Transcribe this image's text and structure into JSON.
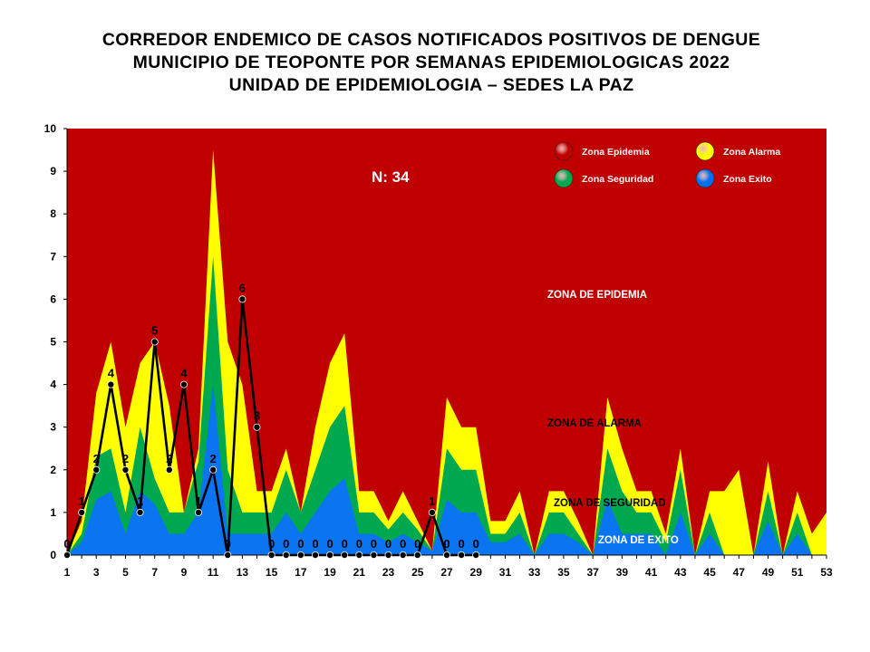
{
  "title": {
    "line1": "CORREDOR ENDEMICO DE CASOS NOTIFICADOS POSITIVOS DE DENGUE",
    "line2": "MUNICIPIO DE TEOPONTE  POR SEMANAS EPIDEMIOLOGICAS 2022",
    "line3": "UNIDAD DE EPIDEMIOLOGIA – SEDES LA PAZ"
  },
  "annotation_n": "N: 34",
  "zone_labels": {
    "epidemia": "ZONA DE EPIDEMIA",
    "alarma": "ZONA DE ALARMA",
    "seguridad": "ZONA DE  SEGURIDAD",
    "exito": "ZONA DE  EXITO"
  },
  "legend": [
    {
      "label": "Zona Epidemia",
      "color": "#c00000"
    },
    {
      "label": "Zona Alarma",
      "color": "#ffff00"
    },
    {
      "label": "Zona Seguridad",
      "color": "#00a84f"
    },
    {
      "label": "Zona Exito",
      "color": "#0070f0"
    }
  ],
  "colors": {
    "epidemia": "#c00000",
    "alarma": "#ffff00",
    "seguridad": "#00a84f",
    "exito": "#0b74f0",
    "line": "#000000"
  },
  "chart_data": {
    "type": "area",
    "title": "CORREDOR ENDEMICO DE CASOS NOTIFICADOS POSITIVOS DE DENGUE MUNICIPIO DE TEOPONTE POR SEMANAS EPIDEMIOLOGICAS 2022",
    "ylim": [
      0,
      10
    ],
    "yticks": [
      0,
      1,
      2,
      3,
      4,
      5,
      6,
      7,
      8,
      9,
      10
    ],
    "xticks": [
      1,
      3,
      5,
      7,
      9,
      11,
      13,
      15,
      17,
      19,
      21,
      23,
      25,
      27,
      29,
      31,
      33,
      35,
      37,
      39,
      41,
      43,
      45,
      47,
      49,
      51,
      53
    ],
    "weeks": [
      1,
      2,
      3,
      4,
      5,
      6,
      7,
      8,
      9,
      10,
      11,
      12,
      13,
      14,
      15,
      16,
      17,
      18,
      19,
      20,
      21,
      22,
      23,
      24,
      25,
      26,
      27,
      28,
      29,
      30,
      31,
      32,
      33,
      34,
      35,
      36,
      37,
      38,
      39,
      40,
      41,
      42,
      43,
      44,
      45,
      46,
      47,
      48,
      49,
      50,
      51,
      52,
      53
    ],
    "zone_exito_upper": [
      0,
      0.3,
      1.3,
      1.5,
      0.5,
      1.5,
      1.2,
      0.5,
      0.5,
      1,
      4,
      0.5,
      0.5,
      0.5,
      0.5,
      1,
      0.5,
      1,
      1.5,
      1.8,
      0.5,
      0.5,
      0.3,
      0.5,
      0.3,
      0.1,
      1.3,
      1,
      1,
      0.3,
      0.3,
      0.5,
      0,
      0.5,
      0.5,
      0.3,
      0,
      1.3,
      0.5,
      0.5,
      0.5,
      0,
      1,
      0,
      0.5,
      0,
      0,
      0,
      0.8,
      0,
      0.5,
      0,
      0
    ],
    "zone_seguridad_upper": [
      0,
      0.5,
      2.3,
      2.5,
      1,
      3,
      1.8,
      1,
      1,
      2.2,
      7,
      2,
      1,
      1,
      1,
      2,
      1,
      2,
      3,
      3.5,
      1,
      1,
      0.6,
      1,
      0.6,
      0.1,
      2.5,
      2,
      2,
      0.5,
      0.5,
      1,
      0,
      1,
      1,
      0.5,
      0,
      2.5,
      1.5,
      1,
      1,
      0.3,
      2,
      0,
      1,
      0,
      0,
      0,
      1.5,
      0,
      1,
      0,
      0
    ],
    "zone_alarma_upper": [
      0,
      0.8,
      3.8,
      5,
      3,
      4.5,
      5,
      3.5,
      1,
      2.5,
      9.5,
      5,
      4,
      1.5,
      1.5,
      2.5,
      1,
      3,
      4.5,
      5.2,
      1.5,
      1.5,
      0.8,
      1.5,
      0.8,
      0.1,
      3.7,
      3,
      3,
      0.8,
      0.8,
      1.5,
      0,
      1.5,
      1.5,
      0.8,
      0,
      3.7,
      2.5,
      1.5,
      1.5,
      0.5,
      2.5,
      0,
      1.5,
      1.5,
      2,
      0,
      2.2,
      0,
      1.5,
      0.5,
      1
    ],
    "cases_weeks": [
      1,
      2,
      3,
      4,
      5,
      6,
      7,
      8,
      9,
      10,
      11,
      12,
      13,
      14,
      15,
      16,
      17,
      18,
      19,
      20,
      21,
      22,
      23,
      24,
      25,
      26,
      27,
      28,
      29
    ],
    "cases": [
      0,
      1,
      2,
      4,
      2,
      1,
      5,
      2,
      4,
      1,
      2,
      0,
      6,
      3,
      0,
      0,
      0,
      0,
      0,
      0,
      0,
      0,
      0,
      0,
      0,
      1,
      0,
      0,
      0
    ],
    "case_labels": [
      "0",
      "1",
      "2",
      "4",
      "2",
      "1",
      "5",
      "2",
      "4",
      "1",
      "2",
      "0",
      "6",
      "3",
      "0",
      "0",
      "0",
      "0",
      "0",
      "0",
      "0",
      "0",
      "0",
      "0",
      "0",
      "1",
      "0",
      "0",
      "0"
    ]
  }
}
